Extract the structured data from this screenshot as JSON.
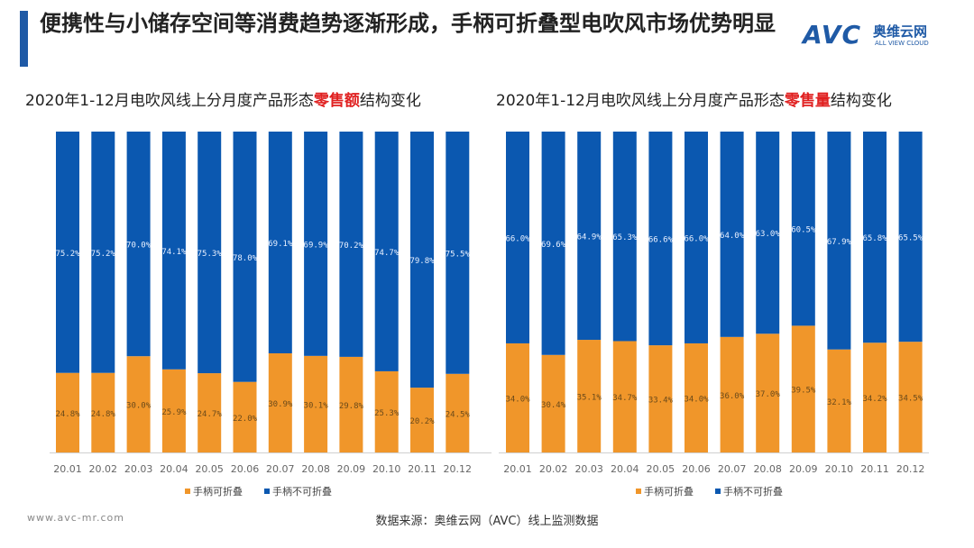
{
  "header": {
    "title": "便携性与小储存空间等消费趋势逐渐形成，手柄可折叠型电吹风市场优势明显",
    "logo_text": "AVC",
    "logo_cn": "奥维云网",
    "logo_en": "ALL VIEW CLOUD"
  },
  "footer": {
    "url": "www.avc-mr.com",
    "source": "数据来源：奥维云网（AVC）线上监测数据"
  },
  "colors": {
    "foldable": "#f0962a",
    "non_foldable": "#0b58b0"
  },
  "chart_data": [
    {
      "type": "bar",
      "stacked": true,
      "title_pre": "2020年1-12月电吹风线上分月度产品形态",
      "title_red": "零售额",
      "title_post": "结构变化",
      "categories": [
        "20.01",
        "20.02",
        "20.03",
        "20.04",
        "20.05",
        "20.06",
        "20.07",
        "20.08",
        "20.09",
        "20.10",
        "20.11",
        "20.12"
      ],
      "series": [
        {
          "name": "手柄可折叠",
          "values": [
            24.8,
            24.8,
            30.0,
            25.9,
            24.7,
            22.0,
            30.9,
            30.1,
            29.8,
            25.3,
            20.2,
            24.5
          ]
        },
        {
          "name": "手柄不可折叠",
          "values": [
            75.2,
            75.2,
            70.0,
            74.1,
            75.3,
            78.0,
            69.1,
            69.9,
            70.2,
            74.7,
            79.8,
            75.5
          ]
        }
      ],
      "ylim": [
        0,
        100
      ],
      "legend": "bottom"
    },
    {
      "type": "bar",
      "stacked": true,
      "title_pre": "2020年1-12月电吹风线上分月度产品形态",
      "title_red": "零售量",
      "title_post": "结构变化",
      "categories": [
        "20.01",
        "20.02",
        "20.03",
        "20.04",
        "20.05",
        "20.06",
        "20.07",
        "20.08",
        "20.09",
        "20.10",
        "20.11",
        "20.12"
      ],
      "series": [
        {
          "name": "手柄可折叠",
          "values": [
            34.0,
            30.4,
            35.1,
            34.7,
            33.4,
            34.0,
            36.0,
            37.0,
            39.5,
            32.1,
            34.2,
            34.5
          ]
        },
        {
          "name": "手柄不可折叠",
          "values": [
            66.0,
            69.6,
            64.9,
            65.3,
            66.6,
            66.0,
            64.0,
            63.0,
            60.5,
            67.9,
            65.8,
            65.5
          ]
        }
      ],
      "ylim": [
        0,
        100
      ],
      "legend": "bottom"
    }
  ]
}
